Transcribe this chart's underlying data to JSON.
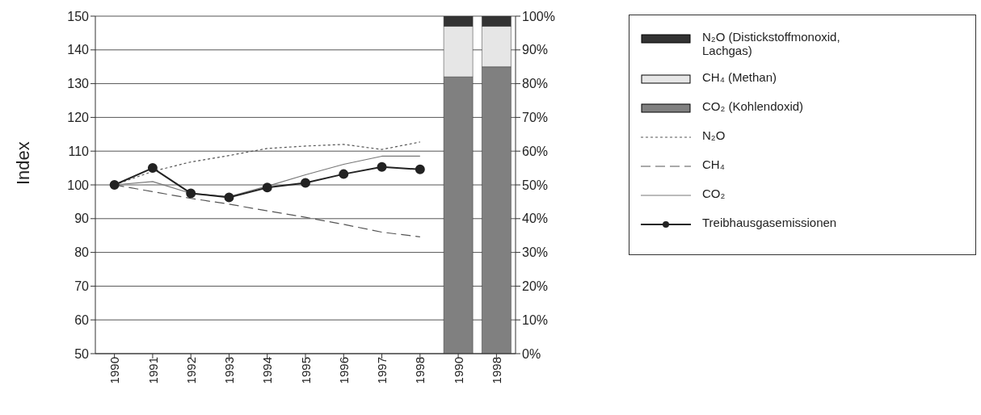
{
  "chart_data": {
    "type": "line",
    "ylabel": "Index",
    "categories": [
      "1990",
      "1991",
      "1992",
      "1993",
      "1994",
      "1995",
      "1996",
      "1997",
      "1998",
      "1990",
      "1998"
    ],
    "series": [
      {
        "name": "N₂O",
        "color": "#555555",
        "line_style": "dotted",
        "marker": "none",
        "values": [
          100,
          104,
          106.8,
          108.7,
          110.8,
          111.5,
          112,
          110.5,
          112.7,
          null,
          null
        ]
      },
      {
        "name": "CH₄",
        "color": "#555555",
        "line_style": "dashed",
        "marker": "none",
        "values": [
          100,
          98,
          96,
          94.3,
          92.3,
          90.4,
          88.3,
          86,
          84.6,
          null,
          null
        ]
      },
      {
        "name": "CO₂",
        "color": "#777777",
        "line_style": "solid",
        "marker": "none",
        "values": [
          100,
          101,
          97.5,
          96.5,
          99.6,
          103,
          106.1,
          108.5,
          108.5,
          null,
          null
        ]
      },
      {
        "name": "Treibhausgasemissionen",
        "color": "#222222",
        "line_style": "solid",
        "marker": "circle",
        "values": [
          100,
          105,
          97.5,
          96.3,
          99.2,
          100.6,
          103.2,
          105.3,
          104.6,
          null,
          null
        ]
      },
      {
        "name": "CO₂ (Kohlendoxid)",
        "type": "bar",
        "axis": "y2",
        "color": "#808080",
        "values": [
          null,
          null,
          null,
          null,
          null,
          null,
          null,
          null,
          null,
          82,
          85
        ]
      },
      {
        "name": "CH₄ (Methan)",
        "type": "bar",
        "axis": "y2",
        "color": "#e6e6e6",
        "values": [
          null,
          null,
          null,
          null,
          null,
          null,
          null,
          null,
          null,
          15,
          12
        ]
      },
      {
        "name": "N₂O (Distickstoffmonoxid, Lachgas)",
        "type": "bar",
        "axis": "y2",
        "color": "#333333",
        "values": [
          null,
          null,
          null,
          null,
          null,
          null,
          null,
          null,
          null,
          3,
          3
        ]
      }
    ],
    "stacked": true,
    "ylim": [
      50,
      150
    ],
    "yticks": [
      50,
      60,
      70,
      80,
      90,
      100,
      110,
      120,
      130,
      140,
      150
    ],
    "y2lim": [
      0,
      100
    ],
    "y2ticks": [
      {
        "value": 0,
        "label": "0%"
      },
      {
        "value": 10,
        "label": "10%"
      },
      {
        "value": 20,
        "label": "20%"
      },
      {
        "value": 30,
        "label": "30%"
      },
      {
        "value": 40,
        "label": "40%"
      },
      {
        "value": 50,
        "label": "50%"
      },
      {
        "value": 60,
        "label": "60%"
      },
      {
        "value": 70,
        "label": "70%"
      },
      {
        "value": 80,
        "label": "80%"
      },
      {
        "value": 90,
        "label": "90%"
      },
      {
        "value": 100,
        "label": "100%"
      }
    ],
    "grid": "y",
    "legend": "right"
  }
}
